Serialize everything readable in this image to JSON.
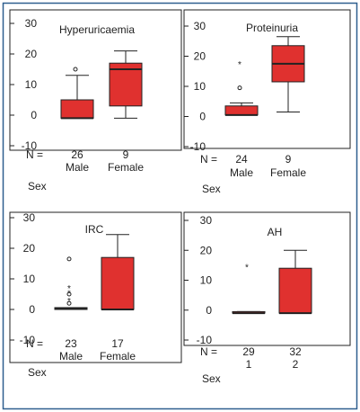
{
  "colors": {
    "frame": "#2f5f8f",
    "box_fill": "#e0312f",
    "stroke": "#222222",
    "text": "#222222"
  },
  "chart_data": [
    {
      "type": "box",
      "title": "Hyperuricaemia",
      "xlabel": "Sex",
      "n_prefix": "N =",
      "yticks": [
        30,
        20,
        10,
        0,
        -10
      ],
      "ylim": [
        -10,
        30
      ],
      "groups": [
        {
          "label": "Male",
          "n": "26",
          "whisker_low": -1,
          "q1": -1,
          "median": -1,
          "q3": 5,
          "whisker_high": 13,
          "outliers": [
            {
              "value": 15,
              "marker": "circle"
            }
          ]
        },
        {
          "label": "Female",
          "n": "9",
          "whisker_low": -1,
          "q1": 3,
          "median": 15,
          "q3": 17,
          "whisker_high": 21,
          "outliers": []
        }
      ]
    },
    {
      "type": "box",
      "title": "Proteinuria",
      "xlabel": "Sex",
      "n_prefix": "N =",
      "yticks": [
        30,
        20,
        10,
        0,
        -10
      ],
      "ylim": [
        -10,
        30
      ],
      "groups": [
        {
          "label": "Male",
          "n": "24",
          "whisker_low": 0.5,
          "q1": 0.5,
          "median": 0.5,
          "q3": 3.5,
          "whisker_high": 4.5,
          "outliers": [
            {
              "value": 17.5,
              "marker": "star"
            },
            {
              "value": 9.5,
              "marker": "circle"
            }
          ]
        },
        {
          "label": "Female",
          "n": "9",
          "whisker_low": 1.5,
          "q1": 11.5,
          "median": 17.5,
          "q3": 23.5,
          "whisker_high": 26.5,
          "outliers": []
        }
      ]
    },
    {
      "type": "box",
      "title": "IRC",
      "xlabel": "Sex",
      "n_prefix": "N =",
      "yticks": [
        30,
        20,
        10,
        0,
        -10
      ],
      "ylim": [
        -10,
        30
      ],
      "groups": [
        {
          "label": "Male",
          "n": "23",
          "whisker_low": 0,
          "q1": 0,
          "median": 0.3,
          "q3": 0.6,
          "whisker_high": 0.6,
          "outliers": [
            {
              "value": 16.5,
              "marker": "circle"
            },
            {
              "value": 7,
              "marker": "star"
            },
            {
              "value": 5.5,
              "marker": "star"
            },
            {
              "value": 5,
              "marker": "circle"
            },
            {
              "value": 3,
              "marker": "star"
            },
            {
              "value": 2,
              "marker": "circle"
            }
          ]
        },
        {
          "label": "Female",
          "n": "17",
          "whisker_low": 0,
          "q1": 0,
          "median": 0,
          "q3": 17,
          "whisker_high": 24.5,
          "outliers": []
        }
      ]
    },
    {
      "type": "box",
      "title": "AH",
      "xlabel": "Sex",
      "n_prefix": "N =",
      "yticks": [
        30,
        20,
        10,
        0,
        -10
      ],
      "ylim": [
        -10,
        30
      ],
      "groups": [
        {
          "label": "1",
          "n": "29",
          "whisker_low": -1,
          "q1": -1,
          "median": -1,
          "q3": -0.5,
          "whisker_high": -0.5,
          "outliers": [
            {
              "value": 14.5,
              "marker": "star"
            }
          ]
        },
        {
          "label": "2",
          "n": "32",
          "whisker_low": -1,
          "q1": -1,
          "median": -1,
          "q3": 14,
          "whisker_high": 20,
          "outliers": []
        }
      ]
    }
  ]
}
